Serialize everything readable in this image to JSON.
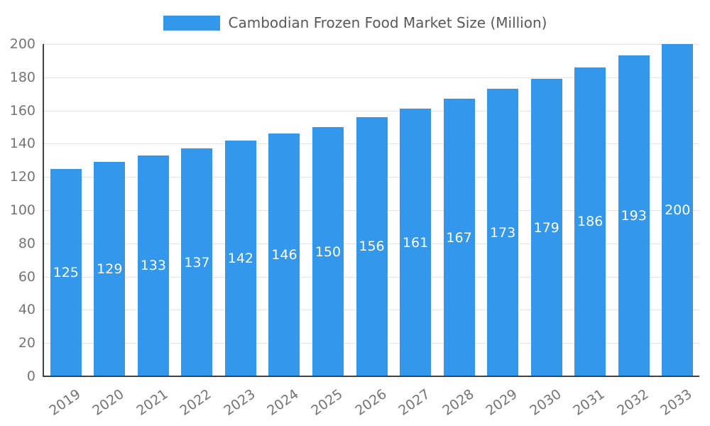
{
  "legend": {
    "label": "Cambodian Frozen Food Market Size (Million)"
  },
  "chart_data": {
    "type": "bar",
    "title": "Cambodian Frozen Food Market Size (Million)",
    "categories": [
      "2019",
      "2020",
      "2021",
      "2022",
      "2023",
      "2024",
      "2025",
      "2026",
      "2027",
      "2028",
      "2029",
      "2030",
      "2031",
      "2032",
      "2033"
    ],
    "values": [
      125,
      129,
      133,
      137,
      142,
      146,
      150,
      156,
      161,
      167,
      173,
      179,
      186,
      193,
      200
    ],
    "xlabel": "",
    "ylabel": "",
    "ylim": [
      0,
      200
    ],
    "ytick_step": 20,
    "grid": true,
    "legend_position": "top",
    "bar_labels_inside": true,
    "colors": {
      "bar": "#3398EB",
      "bar_label": "#ffffff",
      "tick_label": "#757575",
      "grid_line": "#e3e3e3",
      "axis_line": "#424242",
      "title": "#595959",
      "background": "#ffffff"
    }
  }
}
